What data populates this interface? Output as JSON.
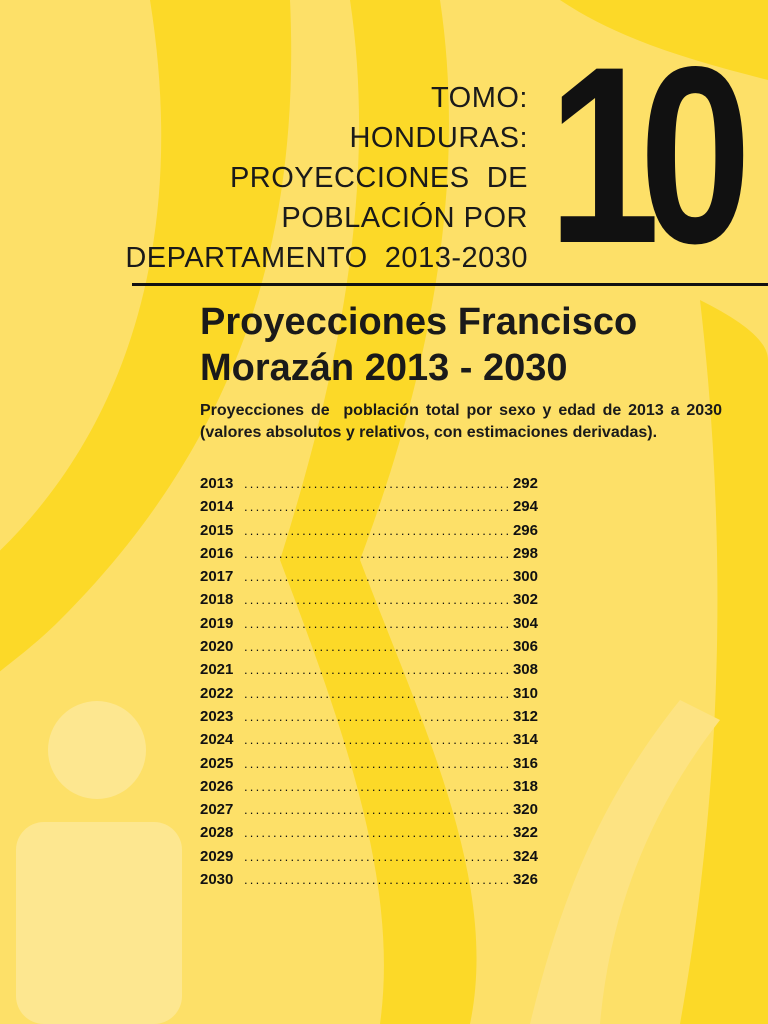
{
  "colors": {
    "background": "#fde068",
    "accent_yellow": "#fcd928",
    "light_yellow": "#fde790",
    "text": "#111111"
  },
  "tomo": {
    "lines": [
      "TOMO:",
      "HONDURAS:",
      "PROYECCIONES  DE",
      "POBLACIÓN POR",
      "DEPARTAMENTO  2013-2030"
    ],
    "volume_number": "10"
  },
  "title": {
    "line1": "Proyecciones Francisco",
    "line2": "Morazán 2013 - 2030"
  },
  "subtitle": "Proyecciones de  población total por sexo y edad de 2013 a 2030 (valores absolutos y relativos, con estimaciones derivadas).",
  "toc": {
    "dot_leader": "........................................................",
    "entries": [
      {
        "year": "2013",
        "page": "292"
      },
      {
        "year": "2014",
        "page": "294"
      },
      {
        "year": "2015",
        "page": "296"
      },
      {
        "year": "2016",
        "page": "298"
      },
      {
        "year": "2017",
        "page": "300"
      },
      {
        "year": "2018",
        "page": "302"
      },
      {
        "year": "2019",
        "page": "304"
      },
      {
        "year": "2020",
        "page": "306"
      },
      {
        "year": "2021",
        "page": "308"
      },
      {
        "year": "2022",
        "page": "310"
      },
      {
        "year": "2023",
        "page": "312"
      },
      {
        "year": "2024",
        "page": "314"
      },
      {
        "year": "2025",
        "page": "316"
      },
      {
        "year": "2026",
        "page": "318"
      },
      {
        "year": "2027",
        "page": "320"
      },
      {
        "year": "2028",
        "page": "322"
      },
      {
        "year": "2029",
        "page": "324"
      },
      {
        "year": "2030",
        "page": "326"
      }
    ]
  },
  "decoration": {
    "person_icon": "person-info-icon"
  }
}
